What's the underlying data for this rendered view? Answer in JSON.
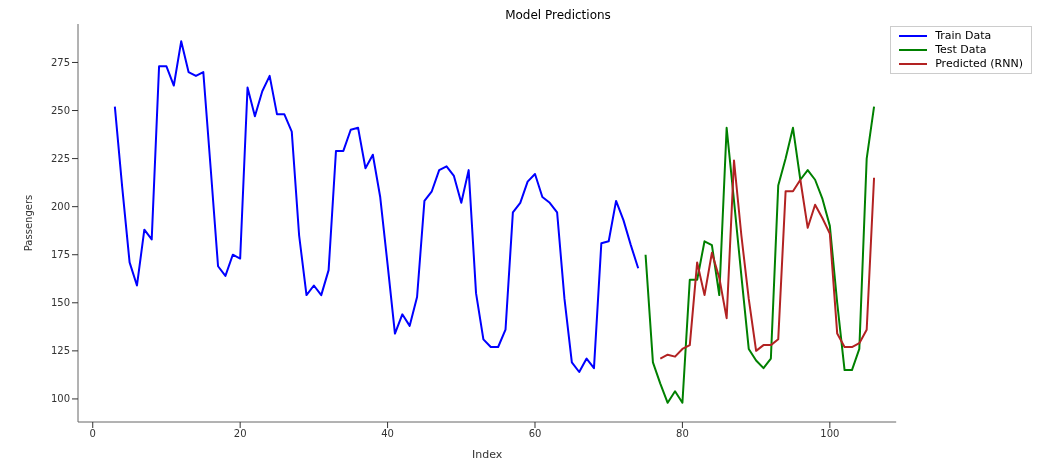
{
  "chart_data": {
    "type": "line",
    "title": "Model Predictions",
    "xlabel": "Index",
    "ylabel": "Passengers",
    "xlim": [
      -2,
      109
    ],
    "ylim": [
      88,
      295
    ],
    "xticks": [
      0,
      20,
      40,
      60,
      80,
      100
    ],
    "yticks": [
      100,
      125,
      150,
      175,
      200,
      225,
      250,
      275
    ],
    "grid": false,
    "legend": "top right",
    "marker": "none",
    "line_style": "solid",
    "series": [
      {
        "name": "Train Data",
        "color": "#0000ff",
        "x": [
          3,
          4,
          5,
          6,
          7,
          8,
          9,
          10,
          11,
          12,
          13,
          14,
          15,
          16,
          17,
          18,
          19,
          20,
          21,
          22,
          23,
          24,
          25,
          26,
          27,
          28,
          29,
          30,
          31,
          32,
          33,
          34,
          35,
          36,
          37,
          38,
          39,
          40,
          41,
          42,
          43,
          44,
          45,
          46,
          47,
          48,
          49,
          50,
          51,
          52,
          53,
          54,
          55,
          56,
          57,
          58,
          59,
          60,
          61,
          62,
          63,
          64,
          65,
          66,
          67,
          68,
          69,
          70,
          71,
          72,
          73,
          74
        ],
        "values": [
          252,
          210,
          171,
          159,
          188,
          183,
          273,
          273,
          263,
          286,
          270,
          268,
          270,
          220,
          169,
          164,
          175,
          173,
          262,
          247,
          260,
          268,
          248,
          248,
          239,
          185,
          154,
          159,
          154,
          167,
          229,
          229,
          240,
          241,
          220,
          227,
          205,
          170,
          134,
          144,
          138,
          153,
          203,
          208,
          219,
          221,
          216,
          202,
          219,
          155,
          131,
          127,
          127,
          136,
          197,
          202,
          213,
          217,
          205,
          202,
          197,
          152,
          119,
          114,
          121,
          116,
          181,
          182,
          203,
          193,
          180,
          168
        ]
      },
      {
        "name": "Test Data",
        "color": "#008000",
        "x": [
          75,
          76,
          77,
          78,
          79,
          80,
          81,
          82,
          83,
          84,
          85,
          86,
          87,
          88,
          89,
          90,
          91,
          92,
          93,
          94,
          95,
          96,
          97,
          98,
          99,
          100,
          101,
          102,
          103,
          104,
          105,
          106
        ],
        "values": [
          175,
          119,
          108,
          98,
          104,
          98,
          162,
          162,
          182,
          180,
          154,
          241,
          203,
          164,
          126,
          120,
          116,
          121,
          211,
          225,
          241,
          214,
          219,
          214,
          204,
          190,
          150,
          115,
          115,
          126,
          225,
          252
        ]
      },
      {
        "name": "Predicted (RNN)",
        "color": "#b22222",
        "x": [
          77,
          78,
          79,
          80,
          81,
          82,
          83,
          84,
          85,
          86,
          87,
          88,
          89,
          90,
          91,
          92,
          93,
          94,
          95,
          96,
          97,
          98,
          99,
          100,
          101,
          102,
          103,
          104,
          105,
          106
        ],
        "values": [
          121,
          123,
          122,
          126,
          128,
          171,
          154,
          176,
          163,
          142,
          224,
          185,
          152,
          125,
          128,
          128,
          131,
          208,
          208,
          214,
          189,
          201,
          194,
          186,
          134,
          127,
          127,
          129,
          136,
          215
        ]
      }
    ]
  }
}
